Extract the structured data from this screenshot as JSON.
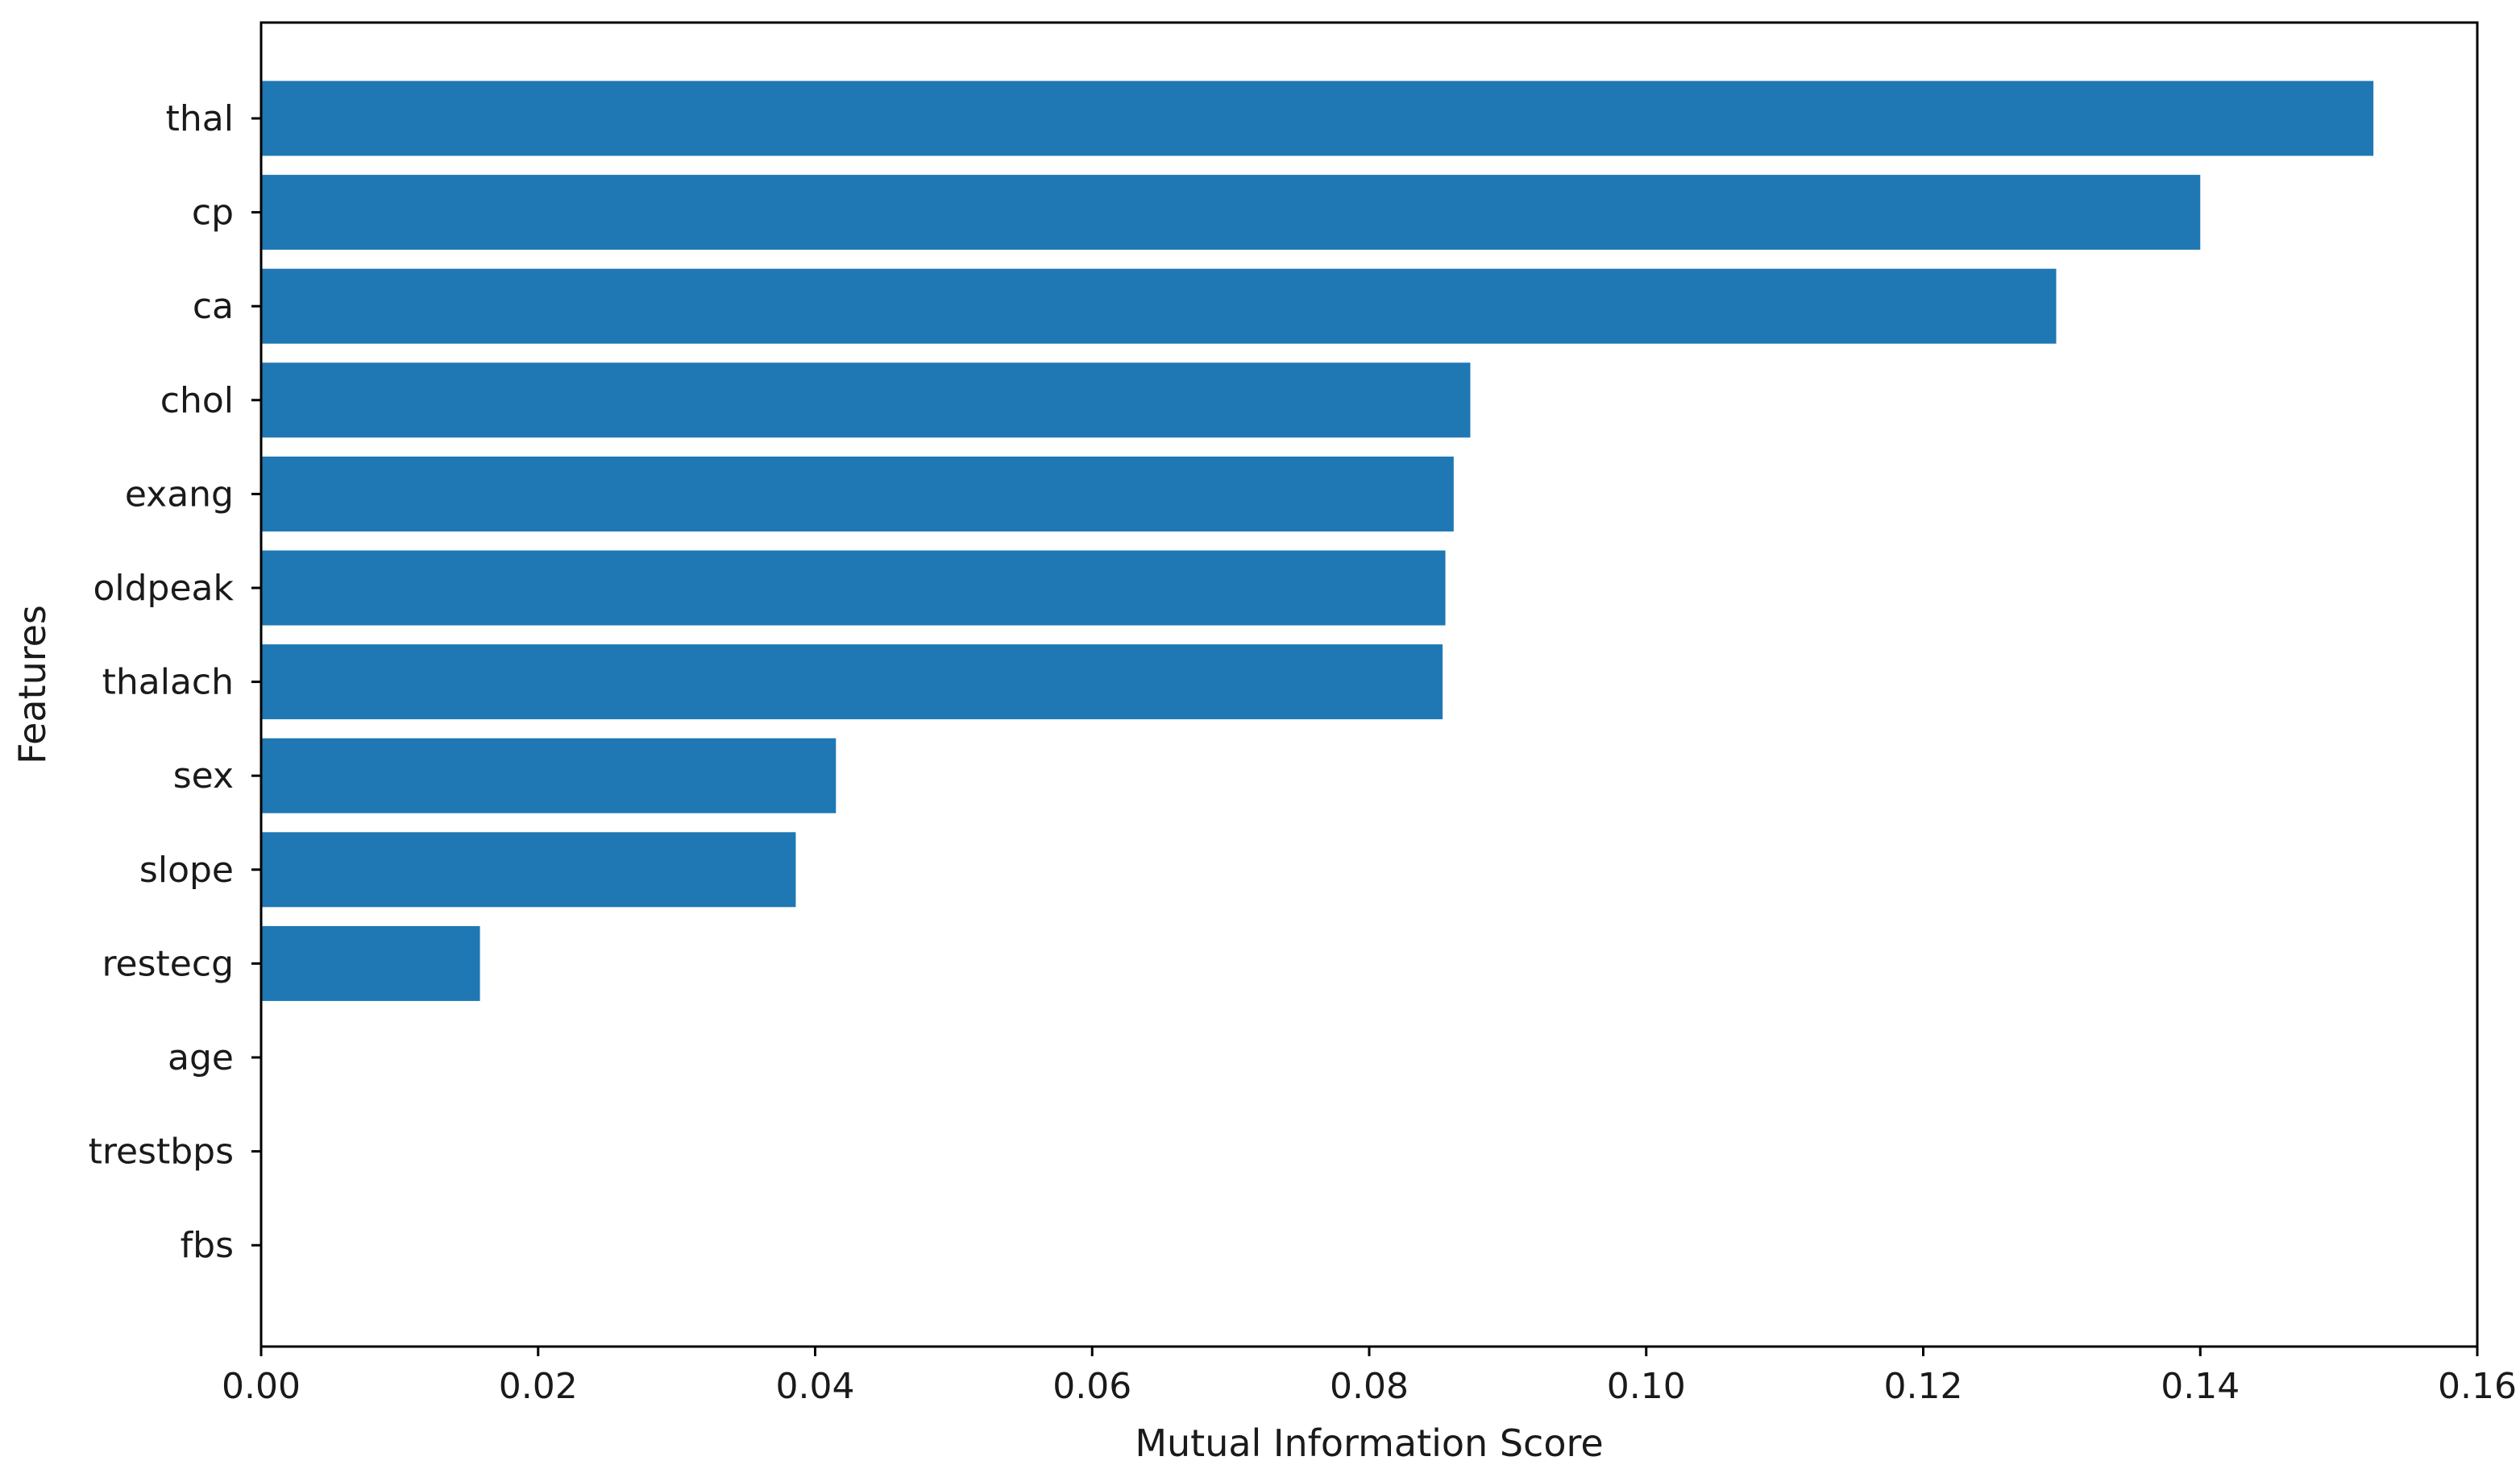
{
  "chart_data": {
    "type": "bar",
    "orientation": "horizontal",
    "categories": [
      "thal",
      "cp",
      "ca",
      "chol",
      "exang",
      "oldpeak",
      "thalach",
      "sex",
      "slope",
      "restecg",
      "age",
      "trestbps",
      "fbs"
    ],
    "values": [
      0.1525,
      0.14,
      0.1296,
      0.0873,
      0.0861,
      0.0855,
      0.0853,
      0.0415,
      0.0386,
      0.0158,
      0.0,
      0.0,
      0.0
    ],
    "title": "",
    "xlabel": "Mutual Information Score",
    "ylabel": "Features",
    "xlim": [
      0,
      0.16
    ],
    "xticks": [
      "0.00",
      "0.02",
      "0.04",
      "0.06",
      "0.08",
      "0.10",
      "0.12",
      "0.14",
      "0.16"
    ],
    "grid": false,
    "bar_color": "#1f77b4"
  }
}
